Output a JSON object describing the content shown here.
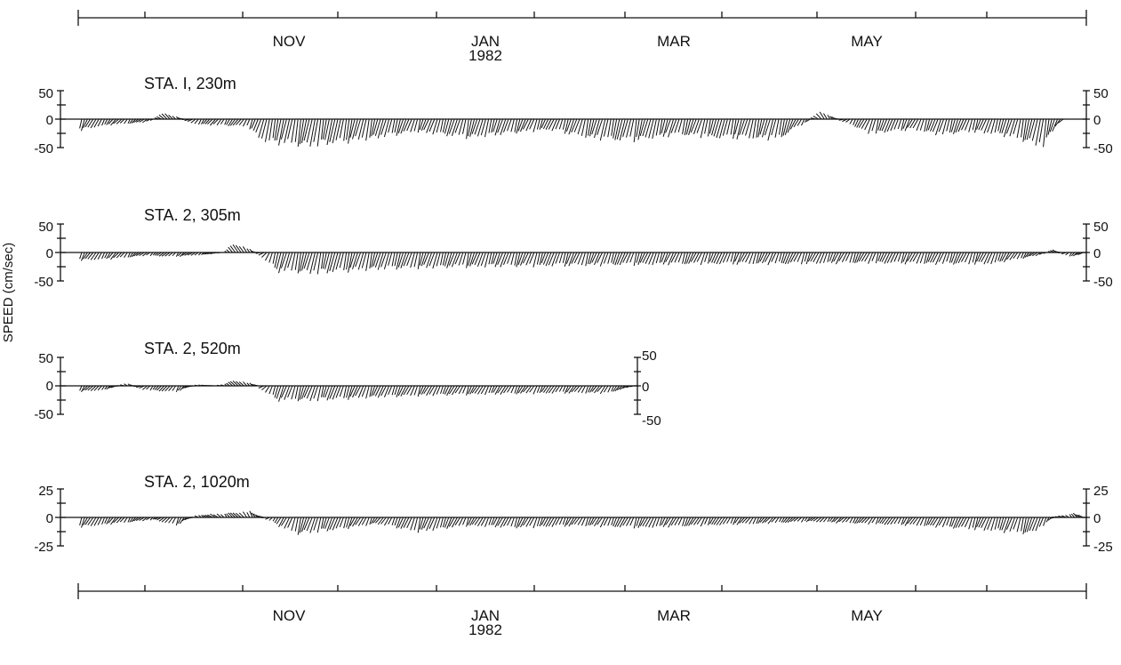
{
  "chart_data": {
    "type": "stick-vector time series",
    "ylabel": "SPEED (cm/sec)",
    "time_axis": {
      "months": [
        "NOV",
        "JAN",
        "MAR",
        "MAY"
      ],
      "year": "1982"
    },
    "series": [
      {
        "name": "STA. I, 230m",
        "ylim": [
          -50,
          50
        ],
        "ticks": [
          "50",
          "0",
          "-50"
        ],
        "x_end": 1.0,
        "keypoints": [
          [
            0.0,
            -24
          ],
          [
            0.03,
            -12
          ],
          [
            0.07,
            -6
          ],
          [
            0.09,
            12
          ],
          [
            0.12,
            -10
          ],
          [
            0.17,
            -14
          ],
          [
            0.19,
            -44
          ],
          [
            0.23,
            -52
          ],
          [
            0.27,
            -44
          ],
          [
            0.3,
            -36
          ],
          [
            0.34,
            -24
          ],
          [
            0.39,
            -36
          ],
          [
            0.43,
            -28
          ],
          [
            0.47,
            -20
          ],
          [
            0.51,
            -36
          ],
          [
            0.55,
            -42
          ],
          [
            0.6,
            -30
          ],
          [
            0.64,
            -36
          ],
          [
            0.7,
            -38
          ],
          [
            0.74,
            14
          ],
          [
            0.79,
            -28
          ],
          [
            0.83,
            -20
          ],
          [
            0.86,
            -30
          ],
          [
            0.89,
            -24
          ],
          [
            0.92,
            -30
          ],
          [
            0.96,
            -52
          ],
          [
            0.98,
            0
          ],
          [
            1.0,
            0
          ]
        ]
      },
      {
        "name": "STA. 2, 305m",
        "ylim": [
          -50,
          50
        ],
        "ticks": [
          "50",
          "0",
          "-50"
        ],
        "x_end": 1.0,
        "keypoints": [
          [
            0.0,
            -16
          ],
          [
            0.04,
            -12
          ],
          [
            0.07,
            -6
          ],
          [
            0.1,
            -8
          ],
          [
            0.13,
            -4
          ],
          [
            0.145,
            0
          ],
          [
            0.16,
            18
          ],
          [
            0.175,
            4
          ],
          [
            0.185,
            -6
          ],
          [
            0.2,
            -36
          ],
          [
            0.24,
            -40
          ],
          [
            0.3,
            -32
          ],
          [
            0.38,
            -28
          ],
          [
            0.46,
            -26
          ],
          [
            0.54,
            -24
          ],
          [
            0.62,
            -22
          ],
          [
            0.7,
            -22
          ],
          [
            0.78,
            -20
          ],
          [
            0.86,
            -22
          ],
          [
            0.91,
            -22
          ],
          [
            0.955,
            -6
          ],
          [
            0.97,
            6
          ],
          [
            0.985,
            -8
          ],
          [
            1.0,
            -4
          ]
        ]
      },
      {
        "name": "STA. 2, 520m",
        "ylim": [
          -50,
          50
        ],
        "ticks": [
          "50",
          "0",
          "-50"
        ],
        "x_end": 0.555,
        "keypoints": [
          [
            0.0,
            -12
          ],
          [
            0.03,
            -8
          ],
          [
            0.05,
            5
          ],
          [
            0.07,
            -8
          ],
          [
            0.1,
            -12
          ],
          [
            0.12,
            2
          ],
          [
            0.14,
            0
          ],
          [
            0.16,
            11
          ],
          [
            0.18,
            2
          ],
          [
            0.2,
            -28
          ],
          [
            0.24,
            -28
          ],
          [
            0.3,
            -22
          ],
          [
            0.36,
            -18
          ],
          [
            0.42,
            -16
          ],
          [
            0.48,
            -14
          ],
          [
            0.53,
            -14
          ],
          [
            0.555,
            0
          ]
        ]
      },
      {
        "name": "STA. 2, 1020m",
        "ylim": [
          -25,
          25
        ],
        "ticks": [
          "25",
          "0",
          "-25"
        ],
        "x_end": 1.0,
        "keypoints": [
          [
            0.0,
            -10
          ],
          [
            0.04,
            -6
          ],
          [
            0.08,
            -2
          ],
          [
            0.1,
            -8
          ],
          [
            0.12,
            2
          ],
          [
            0.15,
            4
          ],
          [
            0.175,
            6
          ],
          [
            0.19,
            -2
          ],
          [
            0.22,
            -16
          ],
          [
            0.26,
            -12
          ],
          [
            0.3,
            -6
          ],
          [
            0.34,
            -14
          ],
          [
            0.39,
            -8
          ],
          [
            0.44,
            -10
          ],
          [
            0.5,
            -8
          ],
          [
            0.56,
            -10
          ],
          [
            0.62,
            -8
          ],
          [
            0.68,
            -6
          ],
          [
            0.73,
            -4
          ],
          [
            0.78,
            -6
          ],
          [
            0.84,
            -8
          ],
          [
            0.9,
            -12
          ],
          [
            0.95,
            -16
          ],
          [
            0.97,
            0
          ],
          [
            0.99,
            4
          ],
          [
            1.0,
            2
          ]
        ]
      }
    ]
  }
}
